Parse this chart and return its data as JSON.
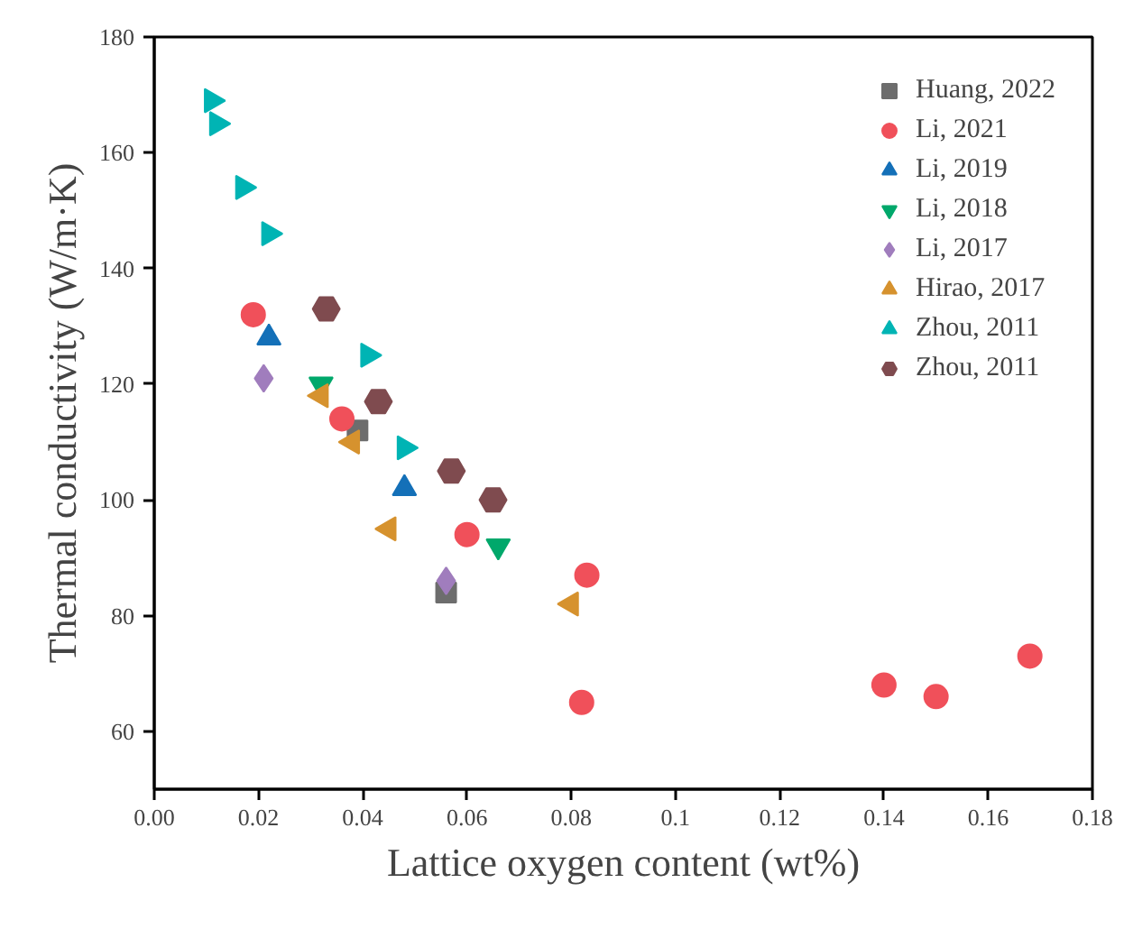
{
  "chart_data": {
    "type": "scatter",
    "xlabel": "Lattice oxygen content (wt%)",
    "ylabel": "Thermal conductivity (W/m·K)",
    "xlim": [
      0,
      0.18
    ],
    "ylim": [
      50,
      180
    ],
    "xticks": [
      "0.00",
      0.02,
      0.04,
      0.06,
      0.08,
      0.1,
      0.12,
      0.14,
      0.16,
      0.18
    ],
    "yticks": [
      60,
      80,
      100,
      120,
      140,
      160,
      180
    ],
    "grid": false,
    "legend": "top right",
    "series": [
      {
        "name": "Huang, 2022",
        "color": "#6d6d6d",
        "marker": "square",
        "x": [
          0.039,
          0.056
        ],
        "values": [
          112,
          84
        ]
      },
      {
        "name": "Li, 2021",
        "color": "#f0505a",
        "marker": "circle",
        "x": [
          0.019,
          0.036,
          0.06,
          0.083,
          0.082,
          0.14,
          0.15,
          0.168
        ],
        "values": [
          132,
          114,
          94,
          87,
          65,
          68,
          66,
          73
        ]
      },
      {
        "name": "Li, 2019",
        "color": "#1470b8",
        "marker": "triangle",
        "x": [
          0.022,
          0.048
        ],
        "values": [
          128,
          102
        ]
      },
      {
        "name": "Li, 2018",
        "color": "#00a86b",
        "marker": "triangle_down",
        "x": [
          0.032,
          0.066
        ],
        "values": [
          120,
          92
        ]
      },
      {
        "name": "Li, 2017",
        "color": "#a07dbd",
        "marker": "diamond",
        "x": [
          0.021,
          0.056
        ],
        "values": [
          121,
          86
        ]
      },
      {
        "name": "Hirao, 2017",
        "color": "#d6922e",
        "marker": "triangle_left",
        "x": [
          0.032,
          0.038,
          0.045,
          0.08
        ],
        "values": [
          118,
          110,
          95,
          82
        ]
      },
      {
        "name": "Zhou, 2011",
        "color": "#00b4b4",
        "marker": "triangle_right",
        "x": [
          0.011,
          0.012,
          0.017,
          0.022,
          0.041,
          0.048
        ],
        "values": [
          169,
          165,
          154,
          146,
          125,
          109
        ]
      },
      {
        "name": "Zhou, 2011",
        "color": "#7f4b4f",
        "x": [
          0.033,
          0.043,
          0.057,
          0.065
        ],
        "values": [
          133,
          117,
          105,
          100
        ]
      }
    ]
  }
}
